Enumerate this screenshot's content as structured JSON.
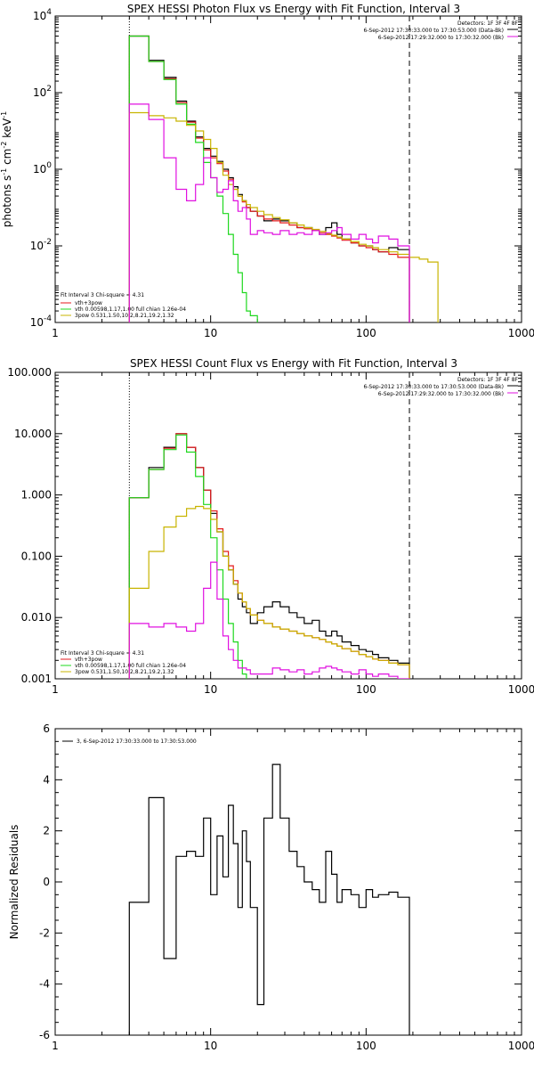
{
  "panels": [
    {
      "kind": "photon",
      "title": "SPEX HESSI Photon Flux vs Energy with Fit Function, Interval 3",
      "ylabel_parts": [
        "photons s",
        "-1",
        " cm",
        "-2",
        " keV",
        "-1"
      ],
      "x_ticks": [
        "1",
        "10",
        "100",
        "1000"
      ],
      "y_ticks": [
        "10^-4",
        "10^-2",
        "10^0",
        "10^2",
        "10^4"
      ],
      "header": {
        "line1": "Detectors: 1F 3F 4F 8F",
        "line2": "6-Sep-2012 17:30:33.000 to 17:30:53.000 (Data-Bk)",
        "line3": "6-Sep-2012 17:29:32.000 to 17:30:32.000 (Bk)"
      },
      "fit_legend": {
        "head": "Fit Interval 3   Chi-square = 4.31",
        "items": [
          {
            "label": "vth+3pow",
            "color": "#e41a1c"
          },
          {
            "label": "vth 0.00598,1.17,1.00  full chian 1.26e-04",
            "color": "#1fd81f"
          },
          {
            "label": "3pow 0.531,1.50,10.2,8.21,19.2,1.32",
            "color": "#c8b400"
          }
        ]
      }
    },
    {
      "kind": "count",
      "title": "SPEX HESSI Count Flux vs Energy with Fit Function, Interval 3",
      "ylabel_parts": [],
      "x_ticks": [
        "1",
        "10",
        "100",
        "1000"
      ],
      "y_ticks": [
        "0.001",
        "0.010",
        "0.100",
        "1.000",
        "10.000",
        "100.000"
      ],
      "header": {
        "line1": "Detectors: 1F 3F 4F 8F",
        "line2": "6-Sep-2012 17:30:33.000 to 17:30:53.000 (Data-Bk)",
        "line3": "6-Sep-2012 17:29:32.000 to 17:30:32.000 (Bk)"
      },
      "fit_legend": {
        "head": "Fit Interval 3   Chi-square = 4.31",
        "items": [
          {
            "label": "vth+3pow",
            "color": "#e41a1c"
          },
          {
            "label": "vth 0.00598,1.17,1.00  full chian 1.26e-04",
            "color": "#1fd81f"
          },
          {
            "label": "3pow 0.531,1.50,10.2,8.21,19.2,1.32",
            "color": "#c8b400"
          }
        ]
      }
    },
    {
      "kind": "residuals",
      "title": "",
      "ylabel": "Normalized Residuals",
      "x_ticks": [
        "1",
        "10",
        "100",
        "1000"
      ],
      "y_ticks": [
        "-6",
        "-4",
        "-2",
        "0",
        "2",
        "4",
        "6"
      ],
      "legend": "3, 6-Sep-2012 17:30:33.000 to 17:30:53.000"
    }
  ],
  "chart_data": [
    {
      "type": "line",
      "title": "SPEX HESSI Photon Flux vs Energy with Fit Function, Interval 3",
      "xlabel": "",
      "ylabel": "photons s^-1 cm^-2 keV^-1",
      "xscale": "log",
      "yscale": "log",
      "xlim": [
        1,
        1000
      ],
      "ylim": [
        0.0001,
        10000
      ],
      "markers": {
        "dotted_x": 3,
        "dashed_x": 190
      },
      "series": [
        {
          "name": "Data-Bk",
          "color": "#000000",
          "step": true,
          "edges": [
            3,
            4,
            5,
            6,
            7,
            8,
            9,
            10,
            11,
            12,
            13,
            14,
            15,
            16,
            17,
            18,
            20,
            22,
            25,
            28,
            32,
            36,
            40,
            45,
            50,
            55,
            60,
            65,
            70,
            80,
            90,
            100,
            110,
            120,
            140,
            160,
            190
          ],
          "values": [
            3000,
            700,
            250,
            60,
            18,
            7,
            3.5,
            2.2,
            1.6,
            1.0,
            0.6,
            0.35,
            0.22,
            0.15,
            0.1,
            0.08,
            0.06,
            0.045,
            0.05,
            0.045,
            0.04,
            0.03,
            0.03,
            0.025,
            0.02,
            0.03,
            0.04,
            0.02,
            0.015,
            0.012,
            0.01,
            0.01,
            0.008,
            0.007,
            0.009,
            0.008
          ]
        },
        {
          "name": "vth+3pow",
          "color": "#e41a1c",
          "step": true,
          "edges": [
            3,
            4,
            5,
            6,
            7,
            8,
            9,
            10,
            11,
            12,
            13,
            14,
            15,
            16,
            17,
            18,
            20,
            22,
            25,
            28,
            32,
            36,
            40,
            45,
            50,
            55,
            60,
            65,
            70,
            80,
            90,
            100,
            110,
            120,
            140,
            160,
            190
          ],
          "values": [
            3000,
            650,
            230,
            55,
            17,
            6.5,
            3.2,
            2.0,
            1.4,
            0.9,
            0.55,
            0.3,
            0.2,
            0.14,
            0.1,
            0.08,
            0.06,
            0.05,
            0.045,
            0.04,
            0.035,
            0.03,
            0.028,
            0.025,
            0.022,
            0.02,
            0.018,
            0.016,
            0.014,
            0.012,
            0.01,
            0.009,
            0.008,
            0.007,
            0.006,
            0.005
          ]
        },
        {
          "name": "vth",
          "color": "#1fd81f",
          "step": true,
          "edges": [
            3,
            4,
            5,
            6,
            7,
            8,
            9,
            10,
            11,
            12,
            13,
            14,
            15,
            16,
            17,
            18,
            20,
            22
          ],
          "values": [
            3000,
            650,
            220,
            50,
            15,
            5,
            1.5,
            0.6,
            0.2,
            0.07,
            0.02,
            0.006,
            0.002,
            0.0006,
            0.0002,
            0.00015,
            8e-05
          ]
        },
        {
          "name": "3pow",
          "color": "#c8b400",
          "step": true,
          "edges": [
            3,
            4,
            5,
            6,
            7,
            8,
            9,
            10,
            11,
            12,
            13,
            14,
            15,
            16,
            17,
            18,
            20,
            22,
            25,
            28,
            32,
            36,
            40,
            45,
            50,
            55,
            60,
            65,
            70,
            80,
            90,
            100,
            110,
            120,
            140,
            160,
            190,
            220,
            250,
            290
          ],
          "values": [
            30,
            25,
            22,
            18,
            14,
            10,
            6,
            3.5,
            1.5,
            0.7,
            0.4,
            0.3,
            0.2,
            0.15,
            0.12,
            0.1,
            0.08,
            0.065,
            0.055,
            0.048,
            0.04,
            0.035,
            0.03,
            0.027,
            0.024,
            0.021,
            0.019,
            0.017,
            0.015,
            0.013,
            0.011,
            0.01,
            0.009,
            0.008,
            0.007,
            0.006,
            0.005,
            0.0045,
            0.0038
          ]
        },
        {
          "name": "Bk",
          "color": "#e010e0",
          "step": true,
          "edges": [
            3,
            4,
            5,
            6,
            7,
            8,
            9,
            10,
            11,
            12,
            13,
            14,
            15,
            16,
            17,
            18,
            20,
            22,
            25,
            28,
            32,
            36,
            40,
            45,
            50,
            55,
            60,
            65,
            70,
            80,
            90,
            100,
            110,
            120,
            140,
            160,
            190
          ],
          "values": [
            50,
            20,
            2,
            0.3,
            0.15,
            0.4,
            2,
            0.6,
            0.25,
            0.3,
            0.5,
            0.15,
            0.08,
            0.1,
            0.05,
            0.02,
            0.025,
            0.022,
            0.02,
            0.025,
            0.02,
            0.022,
            0.02,
            0.025,
            0.02,
            0.022,
            0.025,
            0.03,
            0.02,
            0.015,
            0.02,
            0.015,
            0.012,
            0.018,
            0.015,
            0.01
          ]
        }
      ]
    },
    {
      "type": "line",
      "title": "SPEX HESSI Count Flux vs Energy with Fit Function, Interval 3",
      "xlabel": "",
      "ylabel": "",
      "xscale": "log",
      "yscale": "log",
      "xlim": [
        1,
        1000
      ],
      "ylim": [
        0.001,
        100
      ],
      "markers": {
        "dotted_x": 3,
        "dashed_x": 190
      },
      "series": [
        {
          "name": "Data-Bk",
          "color": "#000000",
          "step": true,
          "edges": [
            3,
            4,
            5,
            6,
            7,
            8,
            9,
            10,
            11,
            12,
            13,
            14,
            15,
            16,
            17,
            18,
            20,
            22,
            25,
            28,
            32,
            36,
            40,
            45,
            50,
            55,
            60,
            65,
            70,
            80,
            90,
            100,
            110,
            120,
            140,
            160,
            190
          ],
          "values": [
            0.9,
            2.8,
            6.0,
            10.0,
            6.0,
            2.8,
            1.2,
            0.5,
            0.25,
            0.1,
            0.06,
            0.035,
            0.02,
            0.015,
            0.012,
            0.008,
            0.012,
            0.015,
            0.018,
            0.015,
            0.012,
            0.01,
            0.008,
            0.009,
            0.006,
            0.005,
            0.006,
            0.005,
            0.004,
            0.0035,
            0.003,
            0.0028,
            0.0025,
            0.0022,
            0.002,
            0.0018
          ]
        },
        {
          "name": "vth+3pow",
          "color": "#e41a1c",
          "step": true,
          "edges": [
            3,
            4,
            5,
            6,
            7,
            8,
            9,
            10,
            11,
            12,
            13,
            14,
            15,
            16,
            17,
            18,
            20,
            22,
            25,
            28,
            32,
            36,
            40,
            45,
            50,
            55,
            60,
            65,
            70,
            80,
            90,
            100,
            110,
            120,
            140,
            160,
            190
          ],
          "values": [
            0.9,
            2.6,
            5.8,
            10.0,
            6.0,
            2.8,
            1.2,
            0.55,
            0.28,
            0.12,
            0.07,
            0.04,
            0.025,
            0.018,
            0.014,
            0.011,
            0.009,
            0.008,
            0.007,
            0.0065,
            0.006,
            0.0055,
            0.005,
            0.0047,
            0.0044,
            0.004,
            0.0037,
            0.0034,
            0.0031,
            0.0028,
            0.0025,
            0.0023,
            0.0021,
            0.002,
            0.0018,
            0.0017
          ]
        },
        {
          "name": "vth",
          "color": "#1fd81f",
          "step": true,
          "edges": [
            3,
            4,
            5,
            6,
            7,
            8,
            9,
            10,
            11,
            12,
            13,
            14,
            15,
            16,
            17,
            18,
            20
          ],
          "values": [
            0.9,
            2.6,
            5.5,
            9.5,
            5.0,
            2.0,
            0.7,
            0.2,
            0.06,
            0.02,
            0.008,
            0.004,
            0.002,
            0.0012,
            0.0008,
            0.0006
          ]
        },
        {
          "name": "3pow",
          "color": "#c8b400",
          "step": true,
          "edges": [
            3,
            4,
            5,
            6,
            7,
            8,
            9,
            10,
            11,
            12,
            13,
            14,
            15,
            16,
            17,
            18,
            20,
            22,
            25,
            28,
            32,
            36,
            40,
            45,
            50,
            55,
            60,
            65,
            70,
            80,
            90,
            100,
            110,
            120,
            140,
            160,
            190
          ],
          "values": [
            0.03,
            0.12,
            0.3,
            0.45,
            0.6,
            0.65,
            0.6,
            0.4,
            0.25,
            0.1,
            0.06,
            0.035,
            0.025,
            0.018,
            0.014,
            0.011,
            0.009,
            0.008,
            0.007,
            0.0065,
            0.006,
            0.0055,
            0.005,
            0.0047,
            0.0044,
            0.004,
            0.0037,
            0.0034,
            0.0031,
            0.0028,
            0.0025,
            0.0023,
            0.0021,
            0.002,
            0.0018,
            0.0017
          ]
        },
        {
          "name": "Bk",
          "color": "#e010e0",
          "step": true,
          "edges": [
            3,
            4,
            5,
            6,
            7,
            8,
            9,
            10,
            11,
            12,
            13,
            14,
            15,
            16,
            17,
            18,
            20,
            22,
            25,
            28,
            32,
            36,
            40,
            45,
            50,
            55,
            60,
            65,
            70,
            80,
            90,
            100,
            110,
            120,
            140,
            160,
            190
          ],
          "values": [
            0.008,
            0.007,
            0.008,
            0.007,
            0.006,
            0.008,
            0.03,
            0.08,
            0.02,
            0.005,
            0.003,
            0.002,
            0.0015,
            0.0015,
            0.0014,
            0.0012,
            0.0012,
            0.0012,
            0.0015,
            0.0014,
            0.0013,
            0.0014,
            0.0012,
            0.0013,
            0.0015,
            0.0016,
            0.0015,
            0.0014,
            0.0013,
            0.0012,
            0.0014,
            0.0012,
            0.0011,
            0.0012,
            0.0011,
            0.001
          ]
        }
      ]
    },
    {
      "type": "line",
      "title": "",
      "xlabel": "",
      "ylabel": "Normalized Residuals",
      "xscale": "log",
      "yscale": "linear",
      "xlim": [
        1,
        1000
      ],
      "ylim": [
        -6,
        6
      ],
      "series": [
        {
          "name": "3, 6-Sep-2012 17:30:33.000 to 17:30:53.000",
          "color": "#000000",
          "step": true,
          "edges": [
            3,
            4,
            5,
            6,
            7,
            8,
            9,
            10,
            11,
            12,
            13,
            14,
            15,
            16,
            17,
            18,
            20,
            22,
            25,
            28,
            32,
            36,
            40,
            45,
            50,
            55,
            60,
            65,
            70,
            80,
            90,
            100,
            110,
            120,
            140,
            160,
            190
          ],
          "values": [
            -0.8,
            3.3,
            -3.0,
            1.0,
            1.2,
            1.0,
            2.5,
            -0.5,
            1.8,
            0.2,
            3.0,
            1.5,
            -1.0,
            2.0,
            0.8,
            -1.0,
            -4.8,
            2.5,
            4.6,
            2.5,
            1.2,
            0.6,
            0.0,
            -0.3,
            -0.8,
            1.2,
            0.3,
            -0.8,
            -0.3,
            -0.5,
            -1.0,
            -0.3,
            -0.6,
            -0.5,
            -0.4,
            -0.6
          ]
        }
      ]
    }
  ]
}
